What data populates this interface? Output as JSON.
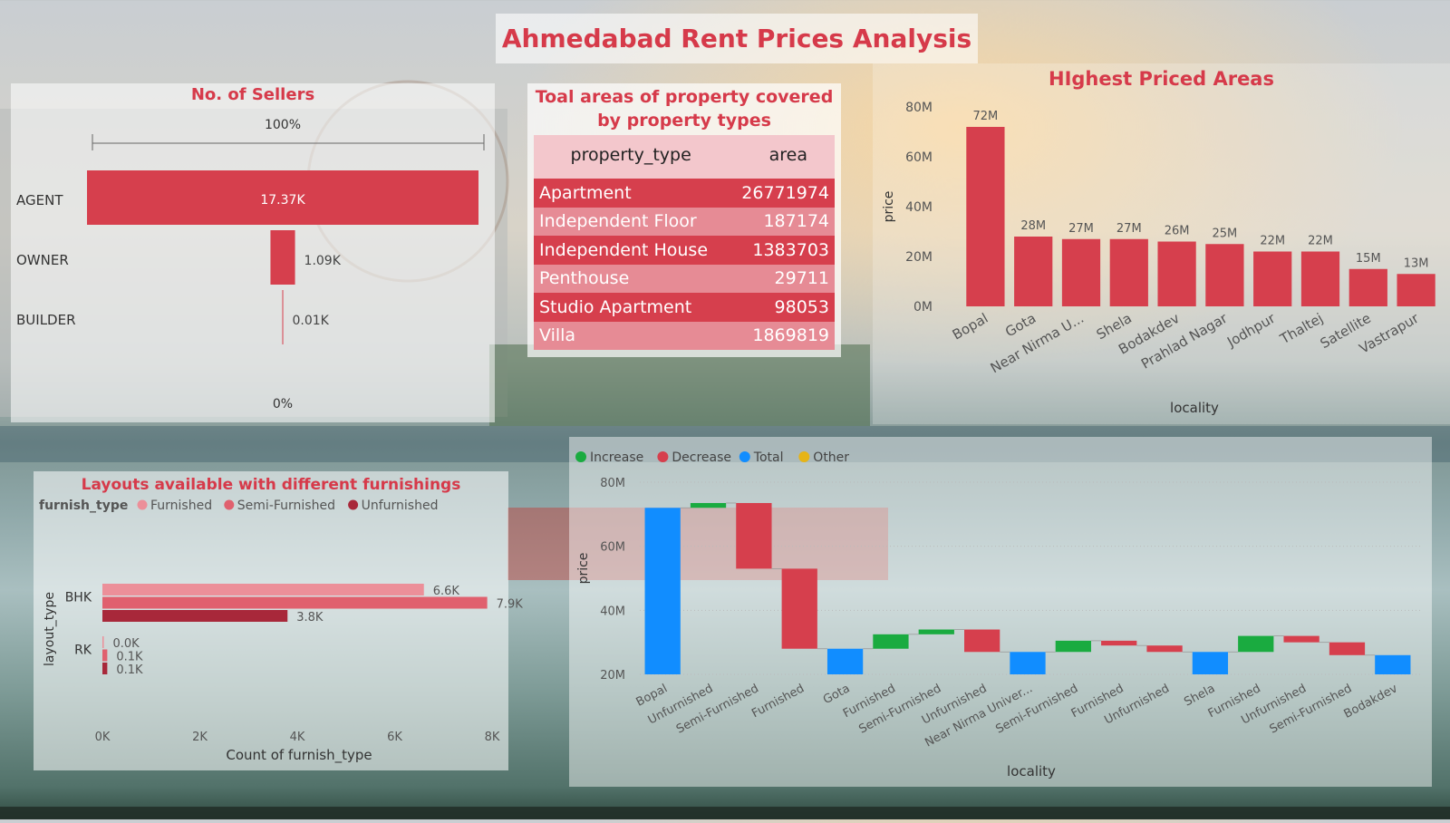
{
  "page_title": "Ahmedabad Rent Prices Analysis",
  "colors": {
    "accent": "#d63a4a",
    "bar_red": "#d63f4d",
    "increase": "#1aab40",
    "decrease": "#d63f4d",
    "total": "#118dff",
    "other": "#e6b417"
  },
  "sellers": {
    "title": "No. of Sellers",
    "top_pct": "100%",
    "bottom_pct": "0%"
  },
  "areas": {
    "title_line1": "Toal areas of property covered",
    "title_line2": "by property types",
    "col_type": "property_type",
    "col_area": "area"
  },
  "highest": {
    "title": "HIghest Priced Areas"
  },
  "layouts": {
    "title": "Layouts available with different furnishings"
  },
  "chart_data": [
    {
      "type": "funnel",
      "title": "No. of Sellers",
      "categories": [
        "AGENT",
        "OWNER",
        "BUILDER"
      ],
      "values": [
        17370,
        1090,
        10
      ],
      "value_labels": [
        "17.37K",
        "1.09K",
        "0.01K"
      ],
      "top_label": "100%",
      "bottom_label": "0%"
    },
    {
      "type": "table",
      "title": "Toal areas of property covered by property types",
      "columns": [
        "property_type",
        "area"
      ],
      "rows": [
        [
          "Apartment",
          "26771974"
        ],
        [
          "Independent Floor",
          "187174"
        ],
        [
          "Independent House",
          "1383703"
        ],
        [
          "Penthouse",
          "29711"
        ],
        [
          "Studio Apartment",
          "98053"
        ],
        [
          "Villa",
          "1869819"
        ]
      ]
    },
    {
      "type": "bar",
      "title": "HIghest Priced Areas",
      "xlabel": "locality",
      "ylabel": "price",
      "categories": [
        "Bopal",
        "Gota",
        "Near Nirma U...",
        "Shela",
        "Bodakdev",
        "Prahlad Nagar",
        "Jodhpur",
        "Thaltej",
        "Satellite",
        "Vastrapur"
      ],
      "values": [
        72,
        28,
        27,
        27,
        26,
        25,
        22,
        22,
        15,
        13
      ],
      "value_labels": [
        "72M",
        "28M",
        "27M",
        "27M",
        "26M",
        "25M",
        "22M",
        "22M",
        "15M",
        "13M"
      ],
      "yticks": [
        "0M",
        "20M",
        "40M",
        "60M",
        "80M"
      ],
      "ylim": [
        0,
        80
      ],
      "unit": "M"
    },
    {
      "type": "bar",
      "orientation": "horizontal",
      "title": "Layouts available with different furnishings",
      "xlabel": "Count of furnish_type",
      "ylabel": "layout_type",
      "legend_title": "furnish_type",
      "categories": [
        "BHK",
        "RK"
      ],
      "series": [
        {
          "name": "Furnished",
          "color": "#ec8f99",
          "values": [
            6600,
            0
          ],
          "value_labels": [
            "6.6K",
            "0.0K"
          ]
        },
        {
          "name": "Semi-Furnished",
          "color": "#e0606e",
          "values": [
            7900,
            100
          ],
          "value_labels": [
            "7.9K",
            "0.1K"
          ]
        },
        {
          "name": "Unfurnished",
          "color": "#a8283a",
          "values": [
            3800,
            100
          ],
          "value_labels": [
            "3.8K",
            "0.1K"
          ]
        }
      ],
      "xticks": [
        "0K",
        "2K",
        "4K",
        "6K",
        "8K"
      ],
      "xlim": [
        0,
        8000
      ],
      "legend_position": "top-left"
    },
    {
      "type": "waterfall",
      "xlabel": "locality",
      "ylabel": "price",
      "legend": [
        "Increase",
        "Decrease",
        "Total",
        "Other"
      ],
      "legend_position": "top-left",
      "yticks": [
        "20M",
        "40M",
        "60M",
        "80M"
      ],
      "ylim": [
        20,
        80
      ],
      "unit": "M",
      "categories": [
        "Bopal",
        "Unfurnished",
        "Semi-Furnished",
        "Furnished",
        "Gota",
        "Furnished",
        "Semi-Furnished",
        "Unfurnished",
        "Near Nirma Univer...",
        "Semi-Furnished",
        "Furnished",
        "Unfurnished",
        "Shela",
        "Furnished",
        "Unfurnished",
        "Semi-Furnished",
        "Bodakdev"
      ],
      "bars": [
        {
          "kind": "total",
          "start": 20,
          "end": 72
        },
        {
          "kind": "increase",
          "start": 72,
          "end": 73.5
        },
        {
          "kind": "decrease",
          "start": 73.5,
          "end": 53
        },
        {
          "kind": "decrease",
          "start": 53,
          "end": 28
        },
        {
          "kind": "total",
          "start": 20,
          "end": 28
        },
        {
          "kind": "increase",
          "start": 28,
          "end": 32.5
        },
        {
          "kind": "increase",
          "start": 32.5,
          "end": 34
        },
        {
          "kind": "decrease",
          "start": 34,
          "end": 27
        },
        {
          "kind": "total",
          "start": 20,
          "end": 27
        },
        {
          "kind": "increase",
          "start": 27,
          "end": 30.5
        },
        {
          "kind": "decrease",
          "start": 30.5,
          "end": 29
        },
        {
          "kind": "decrease",
          "start": 29,
          "end": 27
        },
        {
          "kind": "total",
          "start": 20,
          "end": 27
        },
        {
          "kind": "increase",
          "start": 27,
          "end": 32
        },
        {
          "kind": "decrease",
          "start": 32,
          "end": 30
        },
        {
          "kind": "decrease",
          "start": 30,
          "end": 26
        },
        {
          "kind": "total",
          "start": 20,
          "end": 26
        }
      ]
    }
  ]
}
